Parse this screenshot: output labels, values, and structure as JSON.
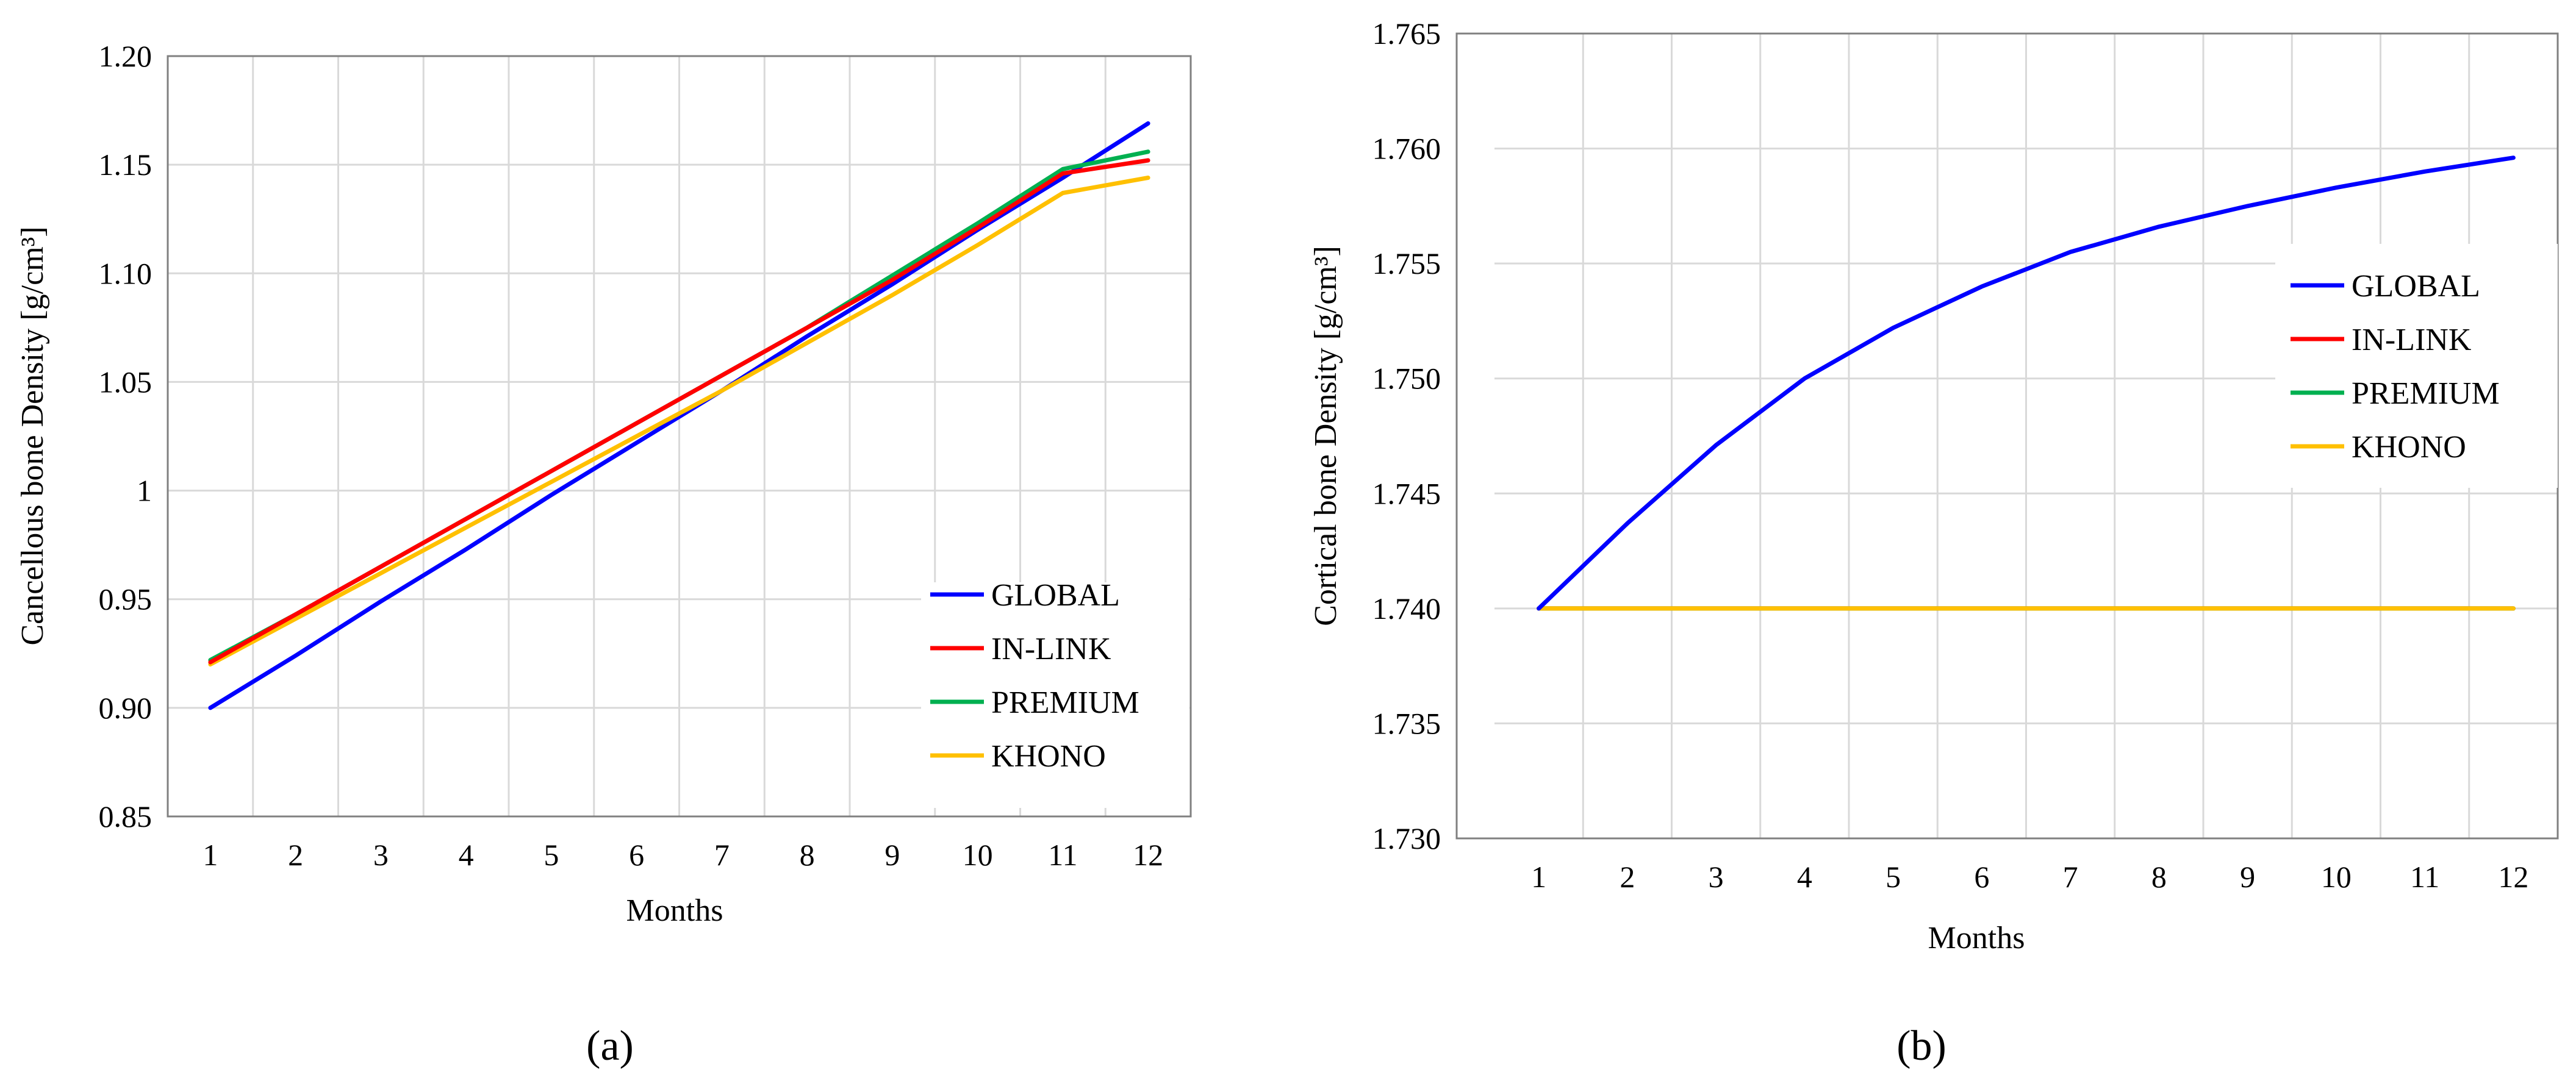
{
  "colors": {
    "GLOBAL": "#0000ff",
    "IN-LINK": "#ff0000",
    "PREMIUM": "#00b050",
    "KHONO": "#ffc000",
    "grid": "#d9d9d9",
    "frame": "#808080"
  },
  "chart_data": [
    {
      "type": "line",
      "panel": "(a)",
      "xlabel": "Months",
      "ylabel": "Cancellous bone Density [g/cm³]",
      "x": [
        1,
        2,
        3,
        4,
        5,
        6,
        7,
        8,
        9,
        10,
        11,
        12
      ],
      "ylim": [
        0.85,
        1.2
      ],
      "yticks": [
        "0.85",
        "0.90",
        "0.95",
        "1",
        "1.05",
        "1.10",
        "1.15",
        "1.20"
      ],
      "grid": true,
      "legend": "bottom-right",
      "series": [
        {
          "name": "GLOBAL",
          "values": [
            0.9,
            0.924,
            0.949,
            0.973,
            0.998,
            1.022,
            1.046,
            1.071,
            1.095,
            1.12,
            1.144,
            1.169
          ]
        },
        {
          "name": "IN-LINK",
          "values": [
            0.921,
            0.943,
            0.965,
            0.987,
            1.009,
            1.031,
            1.053,
            1.075,
            1.097,
            1.121,
            1.146,
            1.152
          ]
        },
        {
          "name": "PREMIUM",
          "values": [
            0.922,
            0.943,
            0.965,
            0.987,
            1.009,
            1.031,
            1.053,
            1.075,
            1.099,
            1.123,
            1.148,
            1.156
          ]
        },
        {
          "name": "KHONO",
          "values": [
            0.92,
            0.941,
            0.962,
            0.983,
            1.004,
            1.025,
            1.046,
            1.068,
            1.09,
            1.113,
            1.137,
            1.144
          ]
        }
      ]
    },
    {
      "type": "line",
      "panel": "(b)",
      "xlabel": "Months",
      "ylabel": "Cortical bone Density [g/cm³]",
      "x": [
        1,
        2,
        3,
        4,
        5,
        6,
        7,
        8,
        9,
        10,
        11,
        12
      ],
      "ylim": [
        1.73,
        1.765
      ],
      "yticks": [
        "1.730",
        "1.735",
        "1.740",
        "1.745",
        "1.750",
        "1.755",
        "1.760",
        "1.765"
      ],
      "grid": true,
      "legend": "right",
      "series": [
        {
          "name": "GLOBAL",
          "values": [
            1.74,
            1.7437,
            1.7471,
            1.75,
            1.7522,
            1.754,
            1.7555,
            1.7566,
            1.7575,
            1.7583,
            1.759,
            1.7596
          ]
        },
        {
          "name": "IN-LINK",
          "values": [
            1.74,
            1.74,
            1.74,
            1.74,
            1.74,
            1.74,
            1.74,
            1.74,
            1.74,
            1.74,
            1.74,
            1.74
          ]
        },
        {
          "name": "PREMIUM",
          "values": [
            1.74,
            1.74,
            1.74,
            1.74,
            1.74,
            1.74,
            1.74,
            1.74,
            1.74,
            1.74,
            1.74,
            1.74
          ]
        },
        {
          "name": "KHONO",
          "values": [
            1.74,
            1.74,
            1.74,
            1.74,
            1.74,
            1.74,
            1.74,
            1.74,
            1.74,
            1.74,
            1.74,
            1.74
          ]
        }
      ]
    }
  ]
}
